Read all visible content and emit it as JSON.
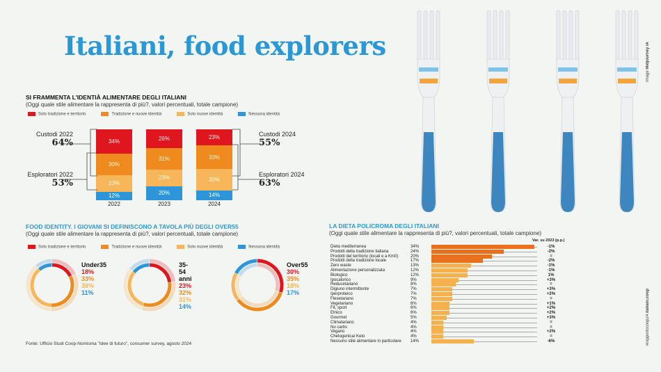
{
  "title": "Italiani, food explorers",
  "credit_prefix": "Image ",
  "credit_name": "Midjourney IA",
  "side_tag": "#rapportocoop24 ",
  "side_site": "italiani.coop",
  "colors": {
    "red": "#e0161f",
    "orange": "#ef8a1e",
    "light": "#f7b65a",
    "blue": "#2e95d8",
    "dark_bar": "#e9711d",
    "light_bar": "#f6b14f"
  },
  "legend": [
    "Solo tradizione e territorio",
    "Tradizione e nuove identità",
    "Solo nuove identità",
    "Nessuna identità"
  ],
  "chart_data": [
    {
      "type": "bar",
      "stacked": true,
      "title": "SI FRAMMENTA L'IDENTIÀ ALIMENTARE DEGLI ITALIANI",
      "subtitle": "(Oggi quale stile alimentare la rappresenta di più?, valori percentuali, totale campione)",
      "categories": [
        "2022",
        "2023",
        "2024"
      ],
      "series": [
        {
          "name": "Solo tradizione e territorio",
          "values": [
            34,
            26,
            23
          ]
        },
        {
          "name": "Tradizione e nuove identità",
          "values": [
            30,
            31,
            33
          ]
        },
        {
          "name": "Solo nuove identità",
          "values": [
            23,
            23,
            30
          ]
        },
        {
          "name": "Nessuna identità",
          "values": [
            12,
            20,
            14
          ]
        }
      ],
      "labels": [
        "34%",
        "30%",
        "23%",
        "12%",
        "26%",
        "31%",
        "23%",
        "20%",
        "23%",
        "33%",
        "30%",
        "14%"
      ],
      "annotations": [
        {
          "label": "Custodi 2022",
          "value": "64%"
        },
        {
          "label": "Esploratori 2022",
          "value": "53%"
        },
        {
          "label": "Custodi 2024",
          "value": "55%"
        },
        {
          "label": "Esploratori 2024",
          "value": "63%"
        }
      ]
    },
    {
      "type": "pie",
      "title": "FOOD IDENTITY. I GIOVANI SI DEFINISCONO A TAVOLA PIÙ DEGLI OVER55",
      "subtitle": "(Oggi quale stile alimentare la rappresenta di più?, valori percentuali, totale campione)",
      "groups": [
        {
          "name": "Under35",
          "values": [
            18,
            33,
            38,
            11
          ],
          "labels": [
            "18%",
            "33%",
            "38%",
            "11%"
          ]
        },
        {
          "name": "35-54 anni",
          "values": [
            23,
            32,
            31,
            14
          ],
          "labels": [
            "23%",
            "32%",
            "31%",
            "14%"
          ]
        },
        {
          "name": "Over55",
          "values": [
            30,
            35,
            18,
            17
          ],
          "labels": [
            "30%",
            "35%",
            "18%",
            "17%"
          ]
        }
      ]
    },
    {
      "type": "bar",
      "orientation": "horizontal",
      "title": "LA DIETA POLICROMA DEGLI ITALIANI",
      "subtitle": "(Oggi quale stile alimentare la rappresenta di più?, valori percentuali, totale campione)",
      "var_header": "Var. su 2023 (p.p.)",
      "rows": [
        {
          "label": "Dieta mediterranea",
          "value": 34,
          "text": "34%",
          "var": "-1%"
        },
        {
          "label": "Prodotti della tradizione italiana",
          "value": 24,
          "text": "24%",
          "var": "-2%"
        },
        {
          "label": "Prodotti del territorio (locali e a Km0)",
          "value": 20,
          "text": "20%",
          "var": "="
        },
        {
          "label": "Prodotti della tradizione locale",
          "value": 17,
          "text": "17%",
          "var": "-2%"
        },
        {
          "label": "Zero waste",
          "value": 13,
          "text": "13%",
          "var": "-1%"
        },
        {
          "label": "Alimentazione personalizzata",
          "value": 12,
          "text": "12%",
          "var": "-1%"
        },
        {
          "label": "Biologico",
          "value": 12,
          "text": "12%",
          "var": "1%"
        },
        {
          "label": "Ipocalorico",
          "value": 9,
          "text": "9%",
          "var": "+3%"
        },
        {
          "label": "Reducetariano",
          "value": 8,
          "text": "8%",
          "var": "="
        },
        {
          "label": "Digiuno intermittente",
          "value": 7,
          "text": "7%",
          "var": "+3%"
        },
        {
          "label": "Iperproteico",
          "value": 7,
          "text": "7%",
          "var": "+2%"
        },
        {
          "label": "Flexetariano",
          "value": 7,
          "text": "7%",
          "var": "="
        },
        {
          "label": "Vegetariano",
          "value": 6,
          "text": "6%",
          "var": "+1%"
        },
        {
          "label": "Fit, sport",
          "value": 6,
          "text": "6%",
          "var": "+2%"
        },
        {
          "label": "Etnico",
          "value": 6,
          "text": "6%",
          "var": "+2%"
        },
        {
          "label": "Gourmet",
          "value": 5,
          "text": "5%",
          "var": "+3%"
        },
        {
          "label": "Climatariano",
          "value": 4,
          "text": "4%",
          "var": "="
        },
        {
          "label": "No carbs",
          "value": 4,
          "text": "4%",
          "var": "="
        },
        {
          "label": "Vegano",
          "value": 4,
          "text": "4%",
          "var": "+2%"
        },
        {
          "label": "Chetogenica/ Keto",
          "value": 4,
          "text": "4%",
          "var": "="
        },
        {
          "label": "Nessuno stile alimentare in particolare",
          "value": 14,
          "text": "14%",
          "var": "-6%"
        }
      ]
    }
  ],
  "source": "Fonte: Ufficio Studi Coop-Nomisma \"Idee di futuro\", consumer survey, agosto 2024"
}
